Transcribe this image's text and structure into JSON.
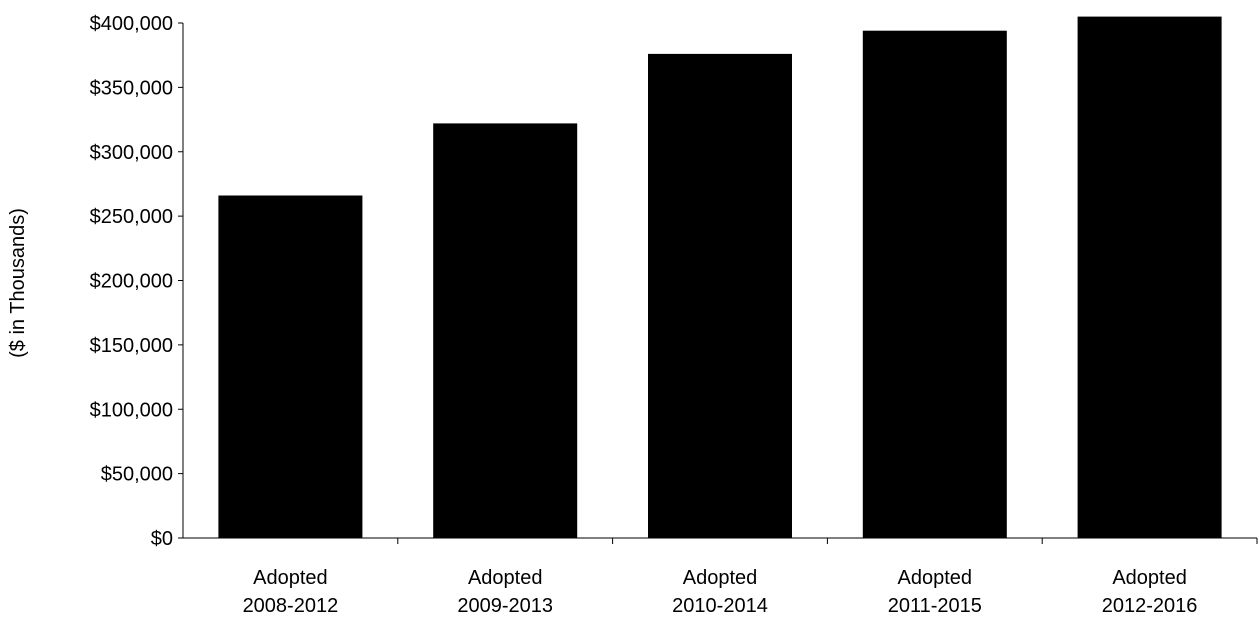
{
  "chart_data": {
    "type": "bar",
    "title": "",
    "xlabel": "",
    "ylabel": "($ in Thousands)",
    "categories": [
      [
        "Adopted",
        "2008-2012"
      ],
      [
        "Adopted",
        "2009-2013"
      ],
      [
        "Adopted",
        "2010-2014"
      ],
      [
        "Adopted",
        "2011-2015"
      ],
      [
        "Adopted",
        "2012-2016"
      ]
    ],
    "values": [
      266000,
      322000,
      376000,
      394000,
      405000
    ],
    "ylim": [
      0,
      400000
    ],
    "yticks": [
      0,
      50000,
      100000,
      150000,
      200000,
      250000,
      300000,
      350000,
      400000
    ],
    "ytick_labels": [
      "$0",
      "$50,000",
      "$100,000",
      "$150,000",
      "$200,000",
      "$250,000",
      "$300,000",
      "$350,000",
      "$400,000"
    ],
    "bar_color": "#000000",
    "grid": false,
    "legend": "none"
  }
}
